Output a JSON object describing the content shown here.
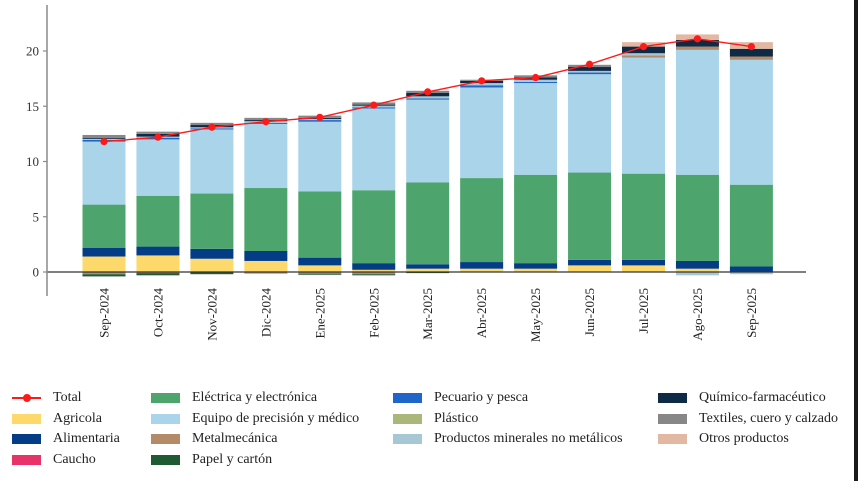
{
  "chart_data": {
    "type": "bar",
    "stacked": true,
    "title": "",
    "xlabel": "",
    "ylabel": "",
    "ylim": [
      -2,
      24
    ],
    "yticks": [
      0,
      5,
      10,
      15,
      20
    ],
    "grid": false,
    "legend_position": "bottom",
    "categories": [
      "Sep-2024",
      "Oct-2024",
      "Nov-2024",
      "Dic-2024",
      "Ene-2025",
      "Feb-2025",
      "Mar-2025",
      "Abr-2025",
      "May-2025",
      "Jun-2025",
      "Jul-2025",
      "Ago-2025",
      "Sep-2025"
    ],
    "series": [
      {
        "name": "Agricola",
        "color": "#fdd96b",
        "values": [
          1.4,
          1.5,
          1.2,
          1.0,
          0.6,
          0.2,
          0.3,
          0.3,
          0.3,
          0.6,
          0.6,
          0.3,
          0.0
        ]
      },
      {
        "name": "Alimentaria",
        "color": "#043d86",
        "values": [
          0.8,
          0.8,
          0.9,
          0.9,
          0.7,
          0.6,
          0.4,
          0.6,
          0.5,
          0.5,
          0.5,
          0.7,
          0.5
        ]
      },
      {
        "name": "Caucho",
        "color": "#e8336a",
        "values": [
          0,
          0,
          0,
          0,
          0,
          0,
          0,
          0,
          0,
          0,
          0,
          0,
          0
        ]
      },
      {
        "name": "Eléctrica y electrónica",
        "color": "#4da56d",
        "values": [
          3.9,
          4.6,
          5.0,
          5.7,
          6.0,
          6.6,
          7.4,
          7.6,
          8.0,
          7.9,
          7.8,
          7.8,
          7.4
        ]
      },
      {
        "name": "Equipo de precisión y médico",
        "color": "#a9d4ea",
        "values": [
          5.7,
          5.1,
          5.8,
          5.8,
          6.3,
          7.4,
          7.5,
          8.2,
          8.3,
          8.9,
          10.5,
          11.3,
          11.3
        ]
      },
      {
        "name": "Metalmecánica",
        "color": "#b58a68",
        "values": [
          -0.2,
          -0.1,
          0,
          -0.15,
          -0.15,
          -0.2,
          0,
          0,
          0,
          0,
          0.2,
          0.3,
          0.3
        ]
      },
      {
        "name": "Papel y cartón",
        "color": "#1f5a32",
        "values": [
          -0.2,
          -0.2,
          -0.2,
          0,
          -0.1,
          -0.1,
          -0.1,
          0,
          0,
          0,
          0,
          0,
          0
        ]
      },
      {
        "name": "Pecuario y pesca",
        "color": "#1f66c8",
        "values": [
          0.15,
          0.15,
          0.1,
          0.1,
          0.15,
          0.1,
          0.1,
          0.2,
          0.1,
          0.15,
          0,
          0,
          0
        ]
      },
      {
        "name": "Plástico",
        "color": "#a9b87a",
        "values": [
          0,
          0,
          0,
          0,
          0,
          0,
          0,
          0,
          0,
          0,
          0,
          0,
          0
        ]
      },
      {
        "name": "Productos minerales no metálicos",
        "color": "#a6c7d3",
        "values": [
          0.1,
          0.1,
          0.1,
          0.15,
          0.1,
          0.15,
          0.2,
          0.2,
          0.2,
          0.15,
          0.2,
          -0.3,
          -0.2
        ]
      },
      {
        "name": "Químico-farmacéutico",
        "color": "#0f2a45",
        "values": [
          0.1,
          0.25,
          0.2,
          0.1,
          0.1,
          0.1,
          0.3,
          0.2,
          0.2,
          0.35,
          0.6,
          0.6,
          0.7
        ]
      },
      {
        "name": "Textiles, cuero y calzado",
        "color": "#878787",
        "values": [
          0.25,
          0.2,
          0.2,
          0.2,
          0.2,
          0.2,
          0.2,
          0.1,
          0.2,
          0.2,
          0,
          0,
          0
        ]
      },
      {
        "name": "Otros productos",
        "color": "#e2b8a2",
        "values": [
          0,
          0,
          0,
          0,
          0,
          0,
          0,
          0,
          0,
          0,
          0.4,
          0.5,
          0.6
        ]
      }
    ],
    "line_series": {
      "name": "Total",
      "color": "#ff1a1a",
      "values": [
        11.8,
        12.2,
        13.1,
        13.6,
        14.0,
        15.1,
        16.3,
        17.3,
        17.6,
        18.8,
        20.4,
        21.1,
        20.4
      ]
    },
    "legend": [
      "Total",
      "Agricola",
      "Alimentaria",
      "Caucho",
      "Eléctrica y electrónica",
      "Equipo de precisión y médico",
      "Metalmecánica",
      "Papel y cartón",
      "Pecuario y pesca",
      "Plástico",
      "Productos minerales no metálicos",
      "Químico-farmacéutico",
      "Textiles, cuero y calzado",
      "Otros productos"
    ]
  }
}
